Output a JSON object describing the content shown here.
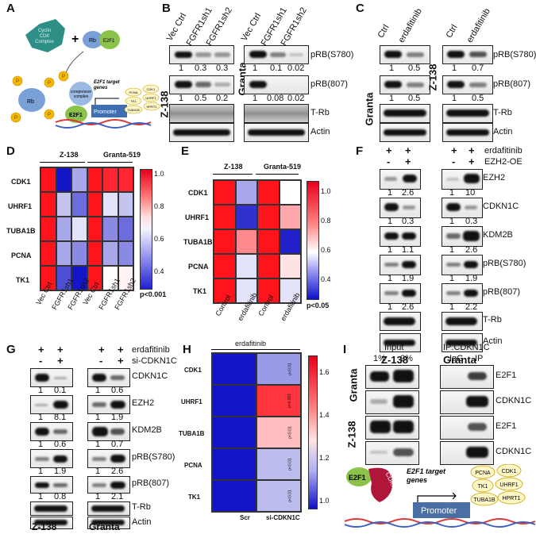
{
  "panels": {
    "A": {
      "label": "A",
      "complex": "Cyclin D/ CDK Complex",
      "complex_lines": [
        "Cyclin",
        "CDK",
        "Complex"
      ],
      "rb": "Rb",
      "e2f1": "E2F1",
      "plus": "+",
      "corepressor": "corepressor complex",
      "corepressor_lines": [
        "corepressor",
        "complex"
      ],
      "e2f1_bound": "E2F1",
      "promoter": "Promoter",
      "targets_title": "E2F1 target genes",
      "targets_lines": [
        "E2F1 target",
        "genes"
      ],
      "targets": [
        "PCNA",
        "CDK1",
        "TK1",
        "UHRF1",
        "TUBA1B",
        "HPRT1"
      ],
      "phospho": "P"
    },
    "B": {
      "label": "B",
      "lanes_left": [
        "Vec Ctrl",
        "FGFR1sh1",
        "FGFR1sh2"
      ],
      "lanes_right": [
        "Vec Ctrl",
        "FGFR1sh1",
        "FGFR1sh2"
      ],
      "cell_left": "Z-138",
      "cell_right": "Granta",
      "rows": [
        "pRB(S780)",
        "pRB(807)",
        "T-Rb",
        "Actin"
      ],
      "quant_left": [
        [
          "1",
          "0.3",
          "0.3"
        ],
        [
          "1",
          "0.5",
          "0.2"
        ]
      ],
      "quant_right": [
        [
          "1",
          "0.1",
          "0.02"
        ],
        [
          "1",
          "0.08",
          "0.02"
        ]
      ]
    },
    "C": {
      "label": "C",
      "lanes_left": [
        "Ctrl",
        "erdafitinib"
      ],
      "lanes_right": [
        "Ctrl",
        "erdafitinib"
      ],
      "cell_left": "Granta",
      "cell_right": "Z-138",
      "rows": [
        "pRB(S780)",
        "pRB(807)",
        "T-Rb",
        "Actin"
      ],
      "quant_left": [
        [
          "1",
          "0.5"
        ],
        [
          "1",
          "0.5"
        ]
      ],
      "quant_right": [
        [
          "1",
          "0.7"
        ],
        [
          "1",
          "0.5"
        ]
      ]
    },
    "D": {
      "label": "D",
      "group_left": "Z-138",
      "group_right": "Granta-519",
      "genes": [
        "CDK1",
        "UHRF1",
        "TUBA1B",
        "PCNA",
        "TK1"
      ],
      "columns": [
        "Vec Ctrl",
        "FGFR1sh1",
        "FGFR1sh2",
        "Vec Ctrl",
        "FGFR1sh1",
        "FGFR1sh2"
      ],
      "colorbar_ticks": [
        "1.0",
        "0.8",
        "0.6",
        "0.4"
      ],
      "pvalue": "p<0.001"
    },
    "E": {
      "label": "E",
      "group_left": "Z-138",
      "group_right": "Granta-519",
      "genes": [
        "CDK1",
        "UHRF1",
        "TUBA1B",
        "PCNA",
        "TK1"
      ],
      "columns": [
        "Control",
        "erdafitinib",
        "Control",
        "erdafitinib"
      ],
      "colorbar_ticks": [
        "1.0",
        "0.8",
        "0.6",
        "0.4"
      ],
      "pvalue": "p<0.05"
    },
    "F": {
      "label": "F",
      "treat1": "erdafitinib",
      "treat2": "EZH2-OE",
      "signs_row1": [
        "+",
        "+",
        "+",
        "+"
      ],
      "signs_row2": [
        "-",
        "+",
        "-",
        "+"
      ],
      "rows": [
        "EZH2",
        "CDKN1C",
        "KDM2B",
        "pRB(S780)",
        "pRB(807)",
        "T-Rb",
        "Actin"
      ],
      "quant_left": [
        [
          "1",
          "2.6"
        ],
        [
          "1",
          "0.3"
        ],
        [
          "1",
          "1.1"
        ],
        [
          "1",
          "1.9"
        ],
        [
          "1",
          "2.6"
        ]
      ],
      "quant_right": [
        [
          "1",
          "10"
        ],
        [
          "1",
          "0.3"
        ],
        [
          "1",
          "2.6"
        ],
        [
          "1",
          "1.9"
        ],
        [
          "1",
          "2.2"
        ]
      ],
      "cell_left": "Z-138",
      "cell_right": "Granta"
    },
    "G": {
      "label": "G",
      "treat1": "erdafitinib",
      "treat2": "si-CDKN1C",
      "signs_row1": [
        "+",
        "+",
        "+",
        "+"
      ],
      "signs_row2": [
        "-",
        "+",
        "-",
        "+"
      ],
      "rows": [
        "CDKN1C",
        "EZH2",
        "KDM2B",
        "pRB(S780)",
        "pRB(807)",
        "T-Rb",
        "Actin"
      ],
      "quant_left": [
        [
          "1",
          "0.1"
        ],
        [
          "1",
          "8.1"
        ],
        [
          "1",
          "0.6"
        ],
        [
          "1",
          "1.9"
        ],
        [
          "1",
          "0.8"
        ]
      ],
      "quant_right": [
        [
          "1",
          "0.6"
        ],
        [
          "1",
          "1.9"
        ],
        [
          "1",
          "0.7"
        ],
        [
          "1",
          "2.6"
        ],
        [
          "1",
          "2.1"
        ]
      ],
      "cell_left": "Z-138",
      "cell_right": "Granta"
    },
    "H": {
      "label": "H",
      "title": "erdafitinib",
      "genes": [
        "CDK1",
        "UHRF1",
        "TUBA1B",
        "PCNA",
        "TK1"
      ],
      "columns": [
        "Scr",
        "si-CDKN1C"
      ],
      "colorbar_ticks": [
        "1.6",
        "1.4",
        "1.2",
        "1.0"
      ],
      "pvals": [
        "p<0.01",
        "p<0.001",
        "p<0.01",
        "p<0.01",
        "p<0.01"
      ]
    },
    "I": {
      "label": "I",
      "input": "Input",
      "pct1": "1%",
      "pct2": "2%",
      "ip_title": "IP:CDKN1C",
      "igg": "IgG",
      "ip": "IP",
      "cell_top": "Granta",
      "cell_bottom": "Z-138",
      "rows": [
        "E2F1",
        "CDKN1C",
        "E2F1",
        "CDKN1C"
      ],
      "e2f1": "E2F1",
      "cdkn1c": "CDKN1C",
      "targets_title": "E2F1 target genes",
      "targets_lines": [
        "E2F1 target",
        "genes"
      ],
      "promoter": "Promoter",
      "targets": [
        "PCNA",
        "CDK1",
        "TK1",
        "UHRF1",
        "TUBA1B",
        "HPRT1"
      ]
    }
  },
  "chart_data": [
    {
      "type": "heatmap",
      "panel": "D",
      "rows": [
        "CDK1",
        "UHRF1",
        "TUBA1B",
        "PCNA",
        "TK1"
      ],
      "columns": [
        "Vec Ctrl",
        "FGFR1sh1",
        "FGFR1sh2",
        "Vec Ctrl",
        "FGFR1sh1",
        "FGFR1sh2"
      ],
      "groups": [
        "Z-138",
        "Granta-519"
      ],
      "values": [
        [
          1.0,
          0.2,
          0.45,
          1.0,
          0.97,
          0.97
        ],
        [
          1.0,
          0.5,
          0.35,
          1.0,
          0.55,
          0.5
        ],
        [
          1.0,
          0.45,
          0.55,
          1.0,
          0.4,
          0.35
        ],
        [
          1.0,
          0.45,
          0.4,
          1.0,
          0.45,
          0.4
        ],
        [
          1.0,
          0.3,
          0.2,
          1.0,
          0.6,
          0.62
        ]
      ],
      "range": [
        0.2,
        1.0
      ]
    },
    {
      "type": "heatmap",
      "panel": "E",
      "rows": [
        "CDK1",
        "UHRF1",
        "TUBA1B",
        "PCNA",
        "TK1"
      ],
      "columns": [
        "Control",
        "erdafitinib",
        "Control",
        "erdafitinib"
      ],
      "groups": [
        "Z-138",
        "Granta-519"
      ],
      "values": [
        [
          1.0,
          0.45,
          1.0,
          0.6
        ],
        [
          1.0,
          0.25,
          1.0,
          0.75
        ],
        [
          1.0,
          0.8,
          1.0,
          0.22
        ],
        [
          1.0,
          0.55,
          1.0,
          0.65
        ],
        [
          1.0,
          0.55,
          1.0,
          0.55
        ]
      ],
      "range": [
        0.2,
        1.0
      ]
    },
    {
      "type": "heatmap",
      "panel": "H",
      "rows": [
        "CDK1",
        "UHRF1",
        "TUBA1B",
        "PCNA",
        "TK1"
      ],
      "columns": [
        "Scr",
        "si-CDKN1C"
      ],
      "values": [
        [
          1.0,
          1.2
        ],
        [
          1.0,
          1.65
        ],
        [
          1.0,
          1.45
        ],
        [
          1.0,
          1.25
        ],
        [
          1.0,
          1.25
        ]
      ],
      "range": [
        1.0,
        1.7
      ]
    }
  ]
}
